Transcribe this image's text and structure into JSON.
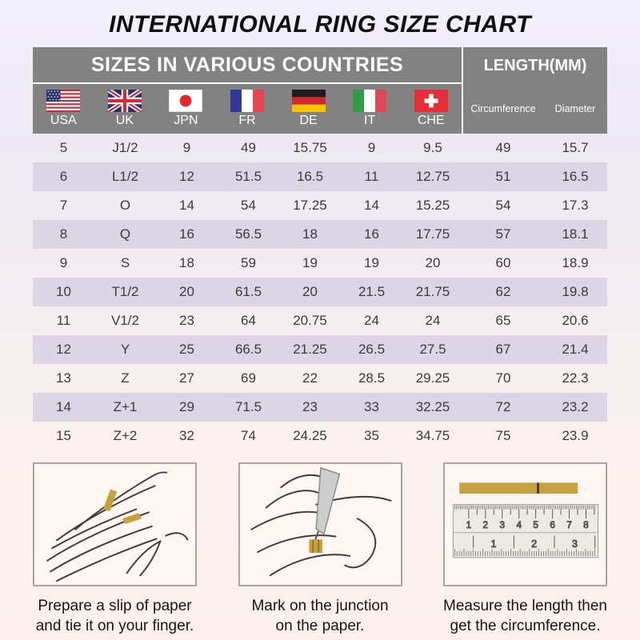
{
  "title": "INTERNATIONAL RING SIZE CHART",
  "header": {
    "countries": "SIZES IN VARIOUS COUNTRIES",
    "length": "LENGTH(MM)",
    "length_sub": [
      "Circumference",
      "Diameter"
    ]
  },
  "countries": [
    {
      "code": "USA",
      "flag": "usa-flag-icon"
    },
    {
      "code": "UK",
      "flag": "uk-flag-icon"
    },
    {
      "code": "JPN",
      "flag": "japan-flag-icon"
    },
    {
      "code": "FR",
      "flag": "france-flag-icon"
    },
    {
      "code": "DE",
      "flag": "germany-flag-icon"
    },
    {
      "code": "IT",
      "flag": "italy-flag-icon"
    },
    {
      "code": "CHE",
      "flag": "switzerland-flag-icon"
    }
  ],
  "chart_data": {
    "type": "table",
    "title": "INTERNATIONAL RING SIZE CHART",
    "columns": [
      "USA",
      "UK",
      "JPN",
      "FR",
      "DE",
      "IT",
      "CHE",
      "Circumference",
      "Diameter"
    ],
    "rows": [
      [
        "5",
        "J1/2",
        "9",
        "49",
        "15.75",
        "9",
        "9.5",
        "49",
        "15.7"
      ],
      [
        "6",
        "L1/2",
        "12",
        "51.5",
        "16.5",
        "11",
        "12.75",
        "51",
        "16.5"
      ],
      [
        "7",
        "O",
        "14",
        "54",
        "17.25",
        "14",
        "15.25",
        "54",
        "17.3"
      ],
      [
        "8",
        "Q",
        "16",
        "56.5",
        "18",
        "16",
        "17.75",
        "57",
        "18.1"
      ],
      [
        "9",
        "S",
        "18",
        "59",
        "19",
        "19",
        "20",
        "60",
        "18.9"
      ],
      [
        "10",
        "T1/2",
        "20",
        "61.5",
        "20",
        "21.5",
        "21.75",
        "62",
        "19.8"
      ],
      [
        "11",
        "V1/2",
        "23",
        "64",
        "20.75",
        "24",
        "24",
        "65",
        "20.6"
      ],
      [
        "12",
        "Y",
        "25",
        "66.5",
        "21.25",
        "26.5",
        "27.5",
        "67",
        "21.4"
      ],
      [
        "13",
        "Z",
        "27",
        "69",
        "22",
        "28.5",
        "29.25",
        "70",
        "22.3"
      ],
      [
        "14",
        "Z+1",
        "29",
        "71.5",
        "23",
        "33",
        "32.25",
        "72",
        "23.2"
      ],
      [
        "15",
        "Z+2",
        "32",
        "74",
        "24.25",
        "35",
        "34.75",
        "75",
        "23.9"
      ]
    ]
  },
  "instructions": [
    {
      "illustration": "hand-with-paper-strip",
      "lines": [
        "Prepare a slip of paper",
        "and tie it on your finger."
      ]
    },
    {
      "illustration": "pen-marking-finger",
      "lines": [
        "Mark on the junction",
        "on the paper."
      ]
    },
    {
      "illustration": "ruler-and-paper-strip",
      "lines": [
        "Measure the length then",
        "get the circumference."
      ],
      "ruler_top_numbers": [
        "1",
        "2",
        "3",
        "4",
        "5",
        "6",
        "7",
        "8"
      ],
      "ruler_bottom_numbers": [
        "1",
        "2",
        "3"
      ]
    }
  ],
  "colors": {
    "header_gray": "#828282",
    "row_stripe": "#dbd5e6",
    "bg_top": "#f2f0fa",
    "bg_bottom": "#fdf0ec",
    "gold": "#c7a13f"
  }
}
